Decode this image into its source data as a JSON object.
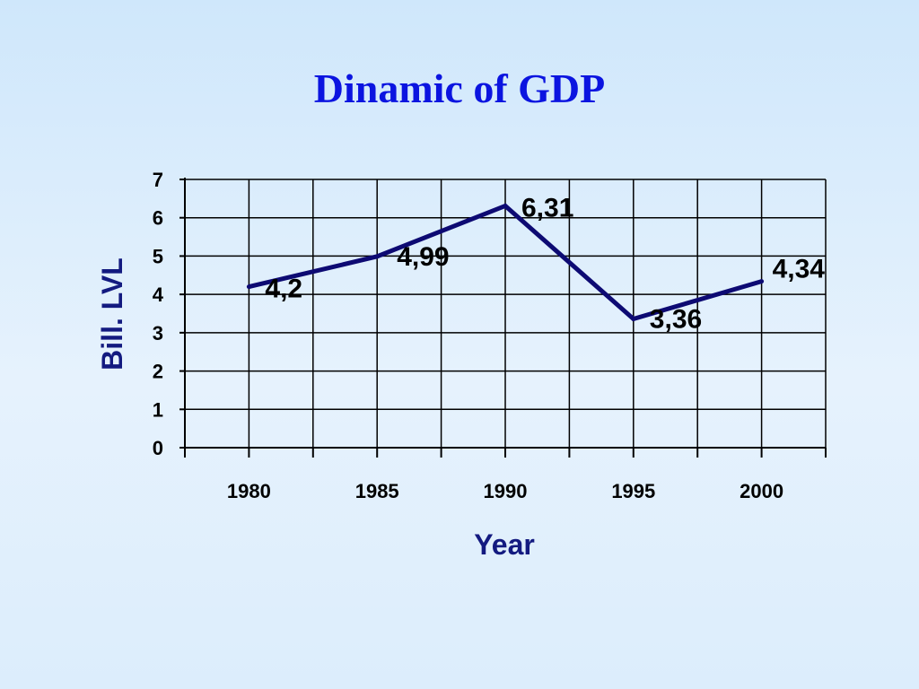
{
  "chart_data": {
    "type": "line",
    "title": "Dinamic of GDP",
    "xlabel": "Year",
    "ylabel": "Bill. LVL",
    "x": [
      "1980",
      "1985",
      "1990",
      "1995",
      "2000"
    ],
    "series": [
      {
        "values": [
          4.2,
          4.99,
          6.31,
          3.36,
          4.34
        ]
      }
    ],
    "data_labels": [
      "4,2",
      "4,99",
      "6,31",
      "3,36",
      "4,34"
    ],
    "y_ticks": [
      "0",
      "1",
      "2",
      "3",
      "4",
      "5",
      "6",
      "7"
    ],
    "ylim": [
      0,
      7
    ],
    "grid": true,
    "legend": "none",
    "colors": {
      "line": "#0d0a73",
      "title": "#0b14e0",
      "axis_title": "#131a80",
      "grid": "#000000"
    }
  }
}
